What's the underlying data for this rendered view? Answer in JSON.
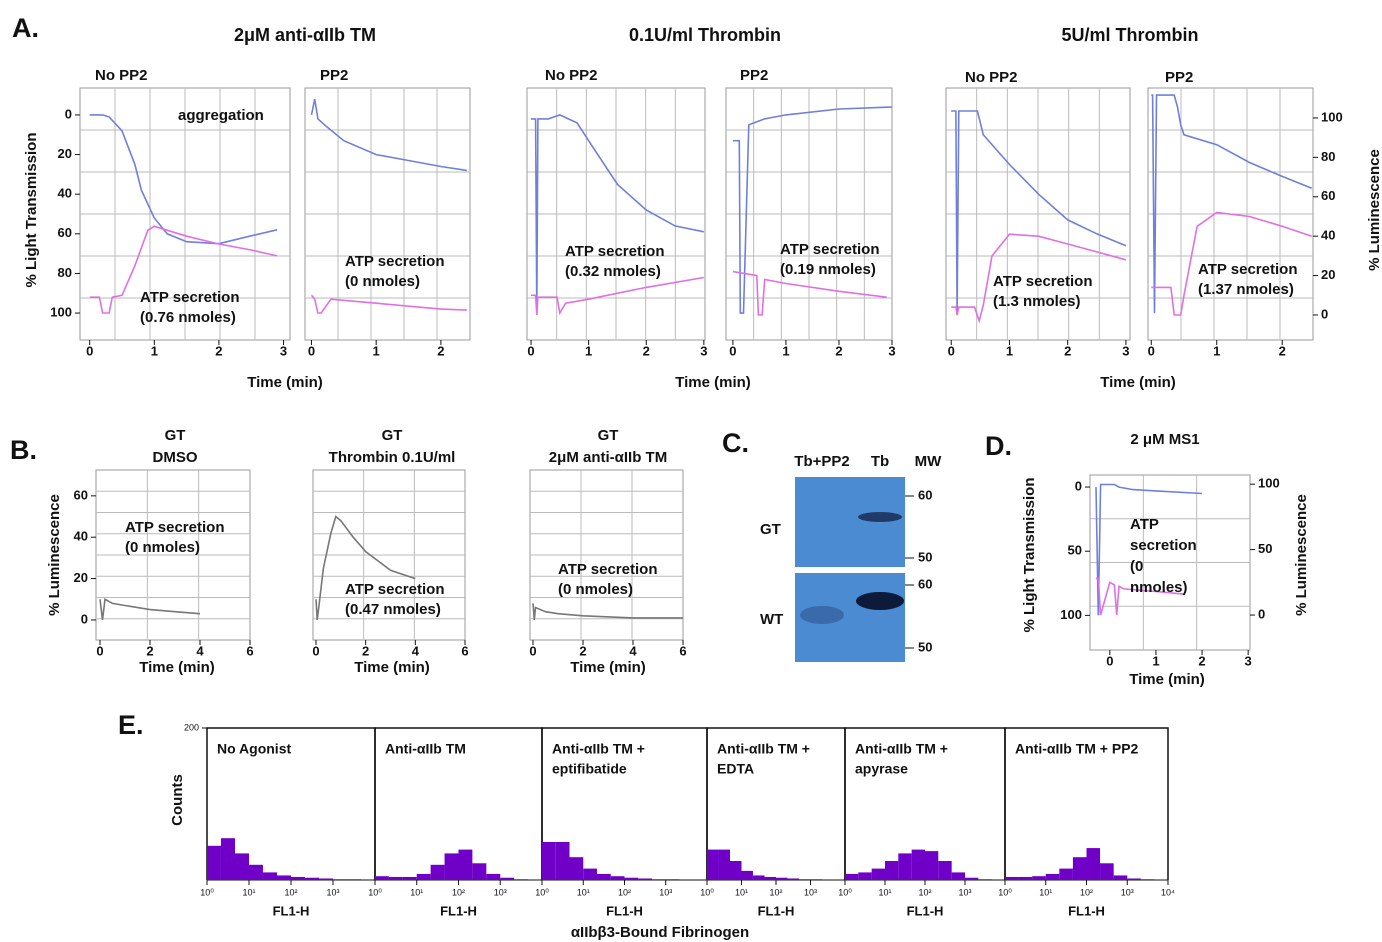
{
  "panel_labels": [
    "A.",
    "B.",
    "C.",
    "D.",
    "E."
  ],
  "panel_a": {
    "titles": [
      "2μM anti-αIIb TM",
      "0.1U/ml Thrombin",
      "5U/ml Thrombin"
    ]
  },
  "panel_c": {
    "lanes": [
      "Tb+PP2",
      "Tb"
    ],
    "mw_label": "MW",
    "rows": [
      {
        "label": "GT",
        "mw": [
          60,
          50
        ]
      },
      {
        "label": "WT",
        "mw": [
          60,
          50
        ]
      }
    ]
  },
  "panel_e": {
    "xlabel": "αIIbβ3-Bound Fibrinogen"
  },
  "chart_data": [
    {
      "type": "line",
      "title": "No PP2",
      "ylabel": "% Light Transmission",
      "xlim": [
        -0.15,
        3.1
      ],
      "xticks": [
        0,
        1,
        2,
        3
      ],
      "ylim": [
        113.6,
        -13.6
      ],
      "yticks": [
        0,
        20,
        40,
        60,
        80,
        100
      ],
      "y2lim": [
        -12.7,
        115.2
      ],
      "annotations": [
        [
          "aggregation"
        ],
        [
          "ATP secretion",
          "(0.76 nmoles)"
        ]
      ],
      "series": [
        {
          "color": "#6f80db",
          "x": [
            0,
            0.2,
            0.3,
            0.5,
            0.7,
            0.8,
            1.0,
            1.2,
            1.5,
            2,
            2.5,
            2.9
          ],
          "values": [
            0,
            0,
            1,
            8,
            25,
            38,
            52,
            60,
            64,
            65,
            61,
            58
          ]
        },
        {
          "color": "#e070e2",
          "axis": "y2",
          "x": [
            0,
            0.15,
            0.2,
            0.3,
            0.35,
            0.5,
            0.7,
            0.9,
            1.0,
            1.5,
            2,
            2.5,
            2.9
          ],
          "values": [
            9,
            9,
            1,
            1,
            9,
            10,
            25,
            43,
            45,
            40,
            36,
            33,
            30
          ]
        }
      ]
    },
    {
      "type": "line",
      "title": "PP2",
      "xlabel": "Time (min)",
      "xlim": [
        -0.1,
        2.45
      ],
      "xticks": [
        0,
        1,
        2
      ],
      "ylim": [
        113.6,
        -13.6
      ],
      "y2lim": [
        -12.7,
        115.2
      ],
      "annotations": [
        [
          "ATP secretion",
          "(0 nmoles)"
        ]
      ],
      "series": [
        {
          "color": "#6f80db",
          "x": [
            0,
            0.05,
            0.1,
            0.2,
            0.5,
            1,
            1.5,
            2,
            2.4
          ],
          "values": [
            0,
            -8,
            2,
            5,
            13,
            20,
            23,
            26,
            28
          ]
        },
        {
          "color": "#e070e2",
          "axis": "y2",
          "x": [
            0,
            0.05,
            0.1,
            0.15,
            0.3,
            1,
            2,
            2.4
          ],
          "values": [
            10,
            8,
            1,
            1,
            8,
            6,
            3,
            2.5
          ]
        }
      ]
    },
    {
      "type": "line",
      "title": "No PP2",
      "xlim": [
        -0.07,
        3.02
      ],
      "xticks": [
        0,
        1,
        2,
        3
      ],
      "ylim": [
        113.6,
        -13.6
      ],
      "y2lim": [
        -12.7,
        115.2
      ],
      "annotations": [
        [
          "ATP secretion",
          "(0.32 nmoles)"
        ]
      ],
      "series": [
        {
          "color": "#6f80db",
          "x": [
            0,
            0.08,
            0.1,
            0.12,
            0.3,
            0.5,
            0.8,
            1,
            1.5,
            2,
            2.5,
            3
          ],
          "values": [
            2,
            2,
            100,
            2,
            2,
            0,
            4,
            13,
            35,
            48,
            56,
            59
          ]
        },
        {
          "color": "#e070e2",
          "axis": "y2",
          "x": [
            0,
            0.08,
            0.1,
            0.12,
            0.45,
            0.5,
            0.6,
            1,
            2,
            3
          ],
          "values": [
            10,
            10,
            0,
            9,
            9,
            1,
            6,
            8,
            14,
            19
          ]
        }
      ]
    },
    {
      "type": "line",
      "title": "PP2",
      "xlabel": "Time (min)",
      "xlim": [
        -0.13,
        3.0
      ],
      "xticks": [
        0,
        1,
        2,
        3
      ],
      "ylim": [
        113.6,
        -13.6
      ],
      "y2lim": [
        -12.7,
        115.2
      ],
      "annotations": [
        [
          "ATP secretion",
          "(0.19 nmoles)"
        ]
      ],
      "series": [
        {
          "color": "#6f80db",
          "x": [
            0,
            0.12,
            0.14,
            0.2,
            0.3,
            0.6,
            1,
            2,
            3
          ],
          "values": [
            13,
            13,
            100,
            100,
            5,
            2,
            0,
            -3,
            -4
          ]
        },
        {
          "color": "#e070e2",
          "axis": "y2",
          "x": [
            0,
            0.45,
            0.48,
            0.55,
            0.6,
            1,
            2,
            2.9
          ],
          "values": [
            22,
            20,
            0,
            0,
            18,
            16,
            12,
            9
          ]
        }
      ]
    },
    {
      "type": "line",
      "title": "No PP2",
      "xlim": [
        -0.09,
        3.07
      ],
      "xticks": [
        0,
        1,
        2,
        3
      ],
      "ylim": [
        113.6,
        -13.6
      ],
      "y2lim": [
        -12.7,
        115.2
      ],
      "annotations": [
        [
          "ATP secretion",
          "(1.3 nmoles)"
        ]
      ],
      "series": [
        {
          "color": "#6f80db",
          "x": [
            0,
            0.08,
            0.1,
            0.13,
            0.45,
            0.55,
            1,
            1.5,
            2,
            2.5,
            3
          ],
          "values": [
            -2,
            -2,
            100,
            -2,
            -2,
            10,
            25,
            40,
            53,
            60,
            66
          ]
        },
        {
          "color": "#e070e2",
          "axis": "y2",
          "x": [
            0,
            0.08,
            0.1,
            0.13,
            0.4,
            0.48,
            0.55,
            0.7,
            1,
            1.5,
            2,
            2.5,
            3
          ],
          "values": [
            4,
            4,
            0,
            4,
            4,
            -3,
            5,
            30,
            41,
            40,
            36,
            32,
            28
          ]
        }
      ]
    },
    {
      "type": "line",
      "title": "PP2",
      "xlabel": "Time (min)",
      "y2label": "% Luminescence",
      "xlim": [
        -0.05,
        2.47
      ],
      "xticks": [
        0,
        1,
        2
      ],
      "ylim": [
        113.6,
        -13.6
      ],
      "y2lim": [
        -12.7,
        115.2
      ],
      "y2ticks": [
        0,
        20,
        40,
        60,
        80,
        100
      ],
      "annotations": [
        [
          "ATP secretion",
          "(1.37 nmoles)"
        ]
      ],
      "series": [
        {
          "color": "#6f80db",
          "x": [
            0,
            0.02,
            0.05,
            0.08,
            0.35,
            0.4,
            0.45,
            0.5,
            1,
            1.5,
            2,
            2.45
          ],
          "values": [
            -10,
            -10,
            100,
            -10,
            -10,
            -4,
            5,
            10,
            15,
            24,
            31,
            37
          ]
        },
        {
          "color": "#e070e2",
          "axis": "y2",
          "x": [
            0,
            0.3,
            0.35,
            0.45,
            0.5,
            0.7,
            1,
            1.5,
            2,
            2.45
          ],
          "values": [
            14,
            14,
            0,
            0,
            10,
            45,
            52,
            50,
            45,
            40
          ]
        }
      ]
    },
    {
      "type": "line",
      "title": [
        "GT",
        "DMSO"
      ],
      "xlabel": "Time (min)",
      "ylabel": "% Luminescence",
      "xlim": [
        -0.16,
        6
      ],
      "xticks": [
        0,
        2,
        4,
        6
      ],
      "ylim": [
        -9.7,
        72.5
      ],
      "yticks": [
        0,
        20,
        40,
        60
      ],
      "annotations": [
        [
          "ATP secretion",
          "(0 nmoles)"
        ]
      ],
      "series": [
        {
          "color": "#777777",
          "x": [
            0,
            0.1,
            0.2,
            0.5,
            1,
            2,
            3,
            4
          ],
          "values": [
            10,
            0,
            10,
            8,
            7,
            5,
            4,
            3
          ]
        }
      ]
    },
    {
      "type": "line",
      "title": [
        "GT",
        "Thrombin 0.1U/ml"
      ],
      "xlabel": "Time (min)",
      "xlim": [
        -0.12,
        6
      ],
      "xticks": [
        0,
        2,
        4,
        6
      ],
      "ylim": [
        -9.7,
        72.5
      ],
      "annotations": [
        [
          "ATP secretion",
          "(0.47 nmoles)"
        ]
      ],
      "series": [
        {
          "color": "#777777",
          "x": [
            0,
            0.05,
            0.1,
            0.3,
            0.6,
            0.8,
            1,
            1.5,
            2,
            3,
            4
          ],
          "values": [
            10,
            0,
            5,
            25,
            42,
            50,
            48,
            40,
            33,
            24,
            20
          ]
        }
      ]
    },
    {
      "type": "line",
      "title": [
        "GT",
        "2μM anti-αIIb TM"
      ],
      "xlabel": "Time (min)",
      "xlim": [
        -0.12,
        6
      ],
      "xticks": [
        0,
        2,
        4,
        6
      ],
      "ylim": [
        -9.7,
        72.5
      ],
      "annotations": [
        [
          "ATP secretion",
          "(0 nmoles)"
        ]
      ],
      "series": [
        {
          "color": "#777777",
          "x": [
            0,
            0.05,
            0.1,
            0.5,
            1,
            2,
            4,
            6
          ],
          "values": [
            8,
            0,
            6,
            4,
            3,
            2,
            1,
            1
          ]
        }
      ]
    },
    {
      "type": "line",
      "title": "2 μM MS1",
      "xlabel": "Time (min)",
      "ylabel": "% Light Transmission",
      "y2label": "% Luminescence",
      "xlim": [
        -0.43,
        3.04
      ],
      "xticks": [
        0,
        1,
        2,
        3
      ],
      "ylim": [
        127,
        -9.4
      ],
      "yticks": [
        0,
        50,
        100
      ],
      "y2lim": [
        -26.7,
        107
      ],
      "y2ticks": [
        0,
        50,
        100
      ],
      "annotations": [
        [
          "ATP",
          "secretion",
          "(0",
          "nmoles)"
        ]
      ],
      "series": [
        {
          "color": "#6f80db",
          "x": [
            -0.3,
            -0.25,
            -0.2,
            0,
            0.1,
            0.2,
            0.5,
            1,
            2
          ],
          "values": [
            0,
            100,
            -2,
            -2,
            -2,
            0,
            2,
            3,
            5
          ]
        },
        {
          "color": "#e070e2",
          "axis": "y2",
          "x": [
            -0.3,
            -0.25,
            -0.2,
            0,
            0.1,
            0.15,
            0.2,
            0.3,
            1,
            1.6
          ],
          "values": [
            28,
            28,
            0,
            25,
            23,
            0,
            22,
            20,
            18,
            16
          ]
        }
      ]
    },
    {
      "type": "histogram",
      "title": [
        "No Agonist"
      ],
      "xlabel": "FL1-H",
      "ylabel": "Counts",
      "xlog": true,
      "color": "#7000c8",
      "xlim": [
        1,
        10000
      ],
      "xticks": [
        {
          "value": 1,
          "label": "10⁰"
        },
        {
          "value": 10,
          "label": "10¹"
        },
        {
          "value": 100,
          "label": "10²"
        },
        {
          "value": 1000,
          "label": "10³"
        }
      ],
      "ylim": [
        0,
        200
      ],
      "yticks": [
        200
      ],
      "bins": [
        1,
        2.15,
        4.64,
        10,
        21.5,
        46.4,
        100,
        215,
        464,
        1000,
        2150,
        4640,
        10000
      ],
      "values": [
        45,
        55,
        35,
        20,
        10,
        6,
        4,
        3,
        2,
        1,
        1,
        0
      ]
    },
    {
      "type": "histogram",
      "title": [
        "Anti-αIIb TM"
      ],
      "xlabel": "FL1-H",
      "xlog": true,
      "color": "#7000c8",
      "xlim": [
        1,
        10000
      ],
      "xticks": [
        {
          "value": 1,
          "label": "10⁰"
        },
        {
          "value": 10,
          "label": "10¹"
        },
        {
          "value": 100,
          "label": "10²"
        },
        {
          "value": 1000,
          "label": "10³"
        }
      ],
      "ylim": [
        0,
        200
      ],
      "bins": [
        1,
        2.15,
        4.64,
        10,
        21.5,
        46.4,
        100,
        215,
        464,
        1000,
        2150,
        4640,
        10000
      ],
      "values": [
        5,
        4,
        4,
        8,
        20,
        35,
        40,
        22,
        8,
        3,
        1,
        0
      ]
    },
    {
      "type": "histogram",
      "title": [
        "Anti-αIIb TM +",
        "eptifibatide"
      ],
      "xlabel": "FL1-H",
      "xlog": true,
      "color": "#7000c8",
      "xlim": [
        1,
        10000
      ],
      "xticks": [
        {
          "value": 1,
          "label": "10⁰"
        },
        {
          "value": 10,
          "label": "10¹"
        },
        {
          "value": 100,
          "label": "10²"
        },
        {
          "value": 1000,
          "label": "10³"
        }
      ],
      "ylim": [
        0,
        200
      ],
      "bins": [
        1,
        2.15,
        4.64,
        10,
        21.5,
        46.4,
        100,
        215,
        464,
        1000,
        2150,
        4640,
        10000
      ],
      "values": [
        50,
        50,
        30,
        15,
        8,
        5,
        3,
        2,
        1,
        1,
        0,
        0
      ]
    },
    {
      "type": "histogram",
      "title": [
        "Anti-αIIb TM +",
        " EDTA"
      ],
      "xlabel": "FL1-H",
      "xlog": true,
      "color": "#7000c8",
      "xlim": [
        1,
        10000
      ],
      "xticks": [
        {
          "value": 1,
          "label": "10⁰"
        },
        {
          "value": 10,
          "label": "10¹"
        },
        {
          "value": 100,
          "label": "10²"
        },
        {
          "value": 1000,
          "label": "10³"
        }
      ],
      "ylim": [
        0,
        200
      ],
      "bins": [
        1,
        2.15,
        4.64,
        10,
        21.5,
        46.4,
        100,
        215,
        464,
        1000,
        2150,
        4640,
        10000
      ],
      "values": [
        40,
        40,
        25,
        12,
        6,
        4,
        3,
        2,
        1,
        1,
        0,
        0
      ]
    },
    {
      "type": "histogram",
      "title": [
        "Anti-αIIb TM +",
        "apyrase"
      ],
      "xlabel": "FL1-H",
      "xlog": true,
      "color": "#7000c8",
      "xlim": [
        1,
        10000
      ],
      "xticks": [
        {
          "value": 1,
          "label": "10⁰"
        },
        {
          "value": 10,
          "label": "10¹"
        },
        {
          "value": 100,
          "label": "10²"
        },
        {
          "value": 1000,
          "label": "10³"
        }
      ],
      "ylim": [
        0,
        200
      ],
      "bins": [
        1,
        2.15,
        4.64,
        10,
        21.5,
        46.4,
        100,
        215,
        464,
        1000,
        2150,
        4640,
        10000
      ],
      "values": [
        8,
        10,
        15,
        25,
        35,
        40,
        38,
        25,
        10,
        3,
        1,
        0
      ]
    },
    {
      "type": "histogram",
      "title": [
        "Anti-αIIb TM + PP2"
      ],
      "xlabel": "FL1-H",
      "xlog": true,
      "color": "#7000c8",
      "xlim": [
        1,
        10000
      ],
      "xticks": [
        {
          "value": 1,
          "label": "10⁰"
        },
        {
          "value": 10,
          "label": "10¹"
        },
        {
          "value": 100,
          "label": "10²"
        },
        {
          "value": 1000,
          "label": "10³"
        },
        {
          "value": 10000,
          "label": "10⁴"
        }
      ],
      "ylim": [
        0,
        200
      ],
      "bins": [
        1,
        2.15,
        4.64,
        10,
        21.5,
        46.4,
        100,
        215,
        464,
        1000,
        2150,
        4640,
        10000
      ],
      "values": [
        4,
        4,
        5,
        8,
        15,
        30,
        42,
        22,
        6,
        2,
        1,
        0
      ]
    }
  ]
}
